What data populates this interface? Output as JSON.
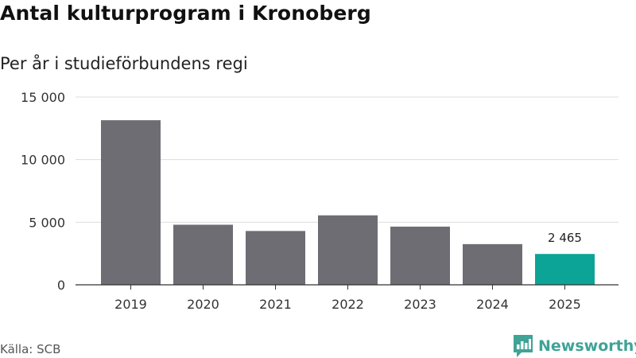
{
  "chart_data": {
    "type": "bar",
    "title": "Antal kulturprogram i Kronoberg",
    "subtitle": "Per år i studieförbundens regi",
    "categories": [
      "2019",
      "2020",
      "2021",
      "2022",
      "2023",
      "2024",
      "2025"
    ],
    "values": [
      13150,
      4800,
      4300,
      5550,
      4650,
      3250,
      2465
    ],
    "highlight_index": 6,
    "data_labels": [
      {
        "index": 6,
        "text": "2 465"
      }
    ],
    "ylim": [
      0,
      15000
    ],
    "yticks": [
      0,
      5000,
      10000,
      15000
    ],
    "ytick_labels": [
      "0",
      "5 000",
      "10 000",
      "15 000"
    ],
    "xlabel": "",
    "ylabel": "",
    "grid": true,
    "legend": "none",
    "colors": {
      "bar": "#6e6d73",
      "highlight": "#0ba497",
      "grid": "#dddddd",
      "axis": "#333333",
      "tick_text": "#333333"
    }
  },
  "footer": {
    "source": "Källa: SCB",
    "brand_name": "Newsworthy",
    "brand_icon": "newsworthy-logo-icon",
    "brand_color": "#3fa396"
  }
}
